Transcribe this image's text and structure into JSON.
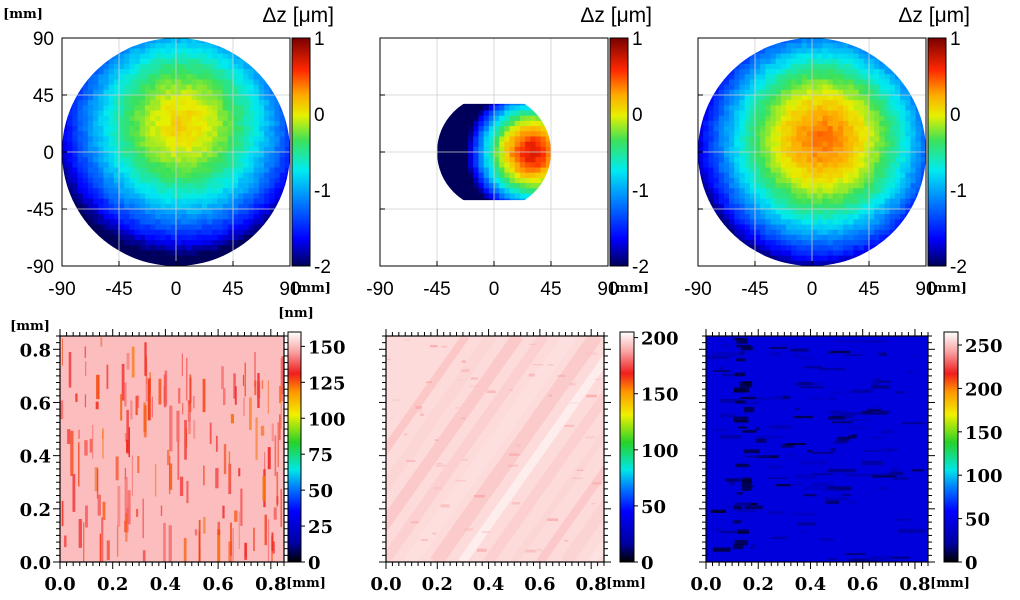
{
  "chart_data": [
    {
      "type": "heatmap",
      "panel": "top-left",
      "colorbar_title": "Δz [μm]",
      "colorbar_ticks": [
        "1",
        "0",
        "-1",
        "-2"
      ],
      "clim": [
        -2,
        1
      ],
      "x_ticks": [
        "-90",
        "-45",
        "0",
        "45",
        "90"
      ],
      "y_ticks": [
        "90",
        "45",
        "0",
        "-45",
        "-90"
      ],
      "x_unit": "[mm]",
      "y_unit": "[mm]",
      "xlim": [
        -90,
        90
      ],
      "ylim": [
        -90,
        90
      ],
      "grid": true,
      "region": "circle",
      "region_radius": 90,
      "peak": {
        "x": 5,
        "y": 22,
        "value": 0.1
      }
    },
    {
      "type": "heatmap",
      "panel": "top-middle",
      "colorbar_title": "Δz [μm]",
      "colorbar_ticks": [
        "1",
        "0",
        "-1",
        "-2"
      ],
      "clim": [
        -2,
        1
      ],
      "x_ticks": [
        "-90",
        "-45",
        "0",
        "45",
        "90"
      ],
      "x_unit": "[mm]",
      "xlim": [
        -90,
        90
      ],
      "ylim": [
        -90,
        90
      ],
      "grid": true,
      "region": "clipped-circle",
      "region_radius": 45,
      "region_y_clip": [
        -38,
        38
      ],
      "peak": {
        "x": 30,
        "y": 0,
        "value": 0.7
      }
    },
    {
      "type": "heatmap",
      "panel": "top-right",
      "colorbar_title": "Δz [μm]",
      "colorbar_ticks": [
        "1",
        "0",
        "-1",
        "-2"
      ],
      "clim": [
        -2,
        1
      ],
      "x_ticks": [
        "-90",
        "-45",
        "0",
        "45",
        "90"
      ],
      "x_unit": "[mm]",
      "xlim": [
        -90,
        90
      ],
      "ylim": [
        -90,
        90
      ],
      "grid": true,
      "region": "circle",
      "region_radius": 90,
      "peak": {
        "x": 8,
        "y": 10,
        "value": 0.4
      }
    },
    {
      "type": "heatmap",
      "panel": "bottom-left",
      "colorbar_unit": "[nm]",
      "colorbar_ticks": [
        "150",
        "125",
        "100",
        "75",
        "50",
        "25",
        "0"
      ],
      "clim": [
        0,
        160
      ],
      "x_ticks": [
        "0.0",
        "0.2",
        "0.4",
        "0.6",
        "0.8"
      ],
      "y_ticks": [
        "0.8",
        "0.6",
        "0.4",
        "0.2",
        "0.0"
      ],
      "x_unit": "[mm]",
      "y_unit": "[mm]",
      "xlim": [
        0,
        0.85
      ],
      "ylim": [
        0,
        0.85
      ],
      "base_value": 150,
      "texture": "vertical streaks"
    },
    {
      "type": "heatmap",
      "panel": "bottom-middle",
      "colorbar_ticks": [
        "200",
        "150",
        "100",
        "50",
        "0"
      ],
      "clim": [
        0,
        205
      ],
      "x_ticks": [
        "0.0",
        "0.2",
        "0.4",
        "0.6",
        "0.8"
      ],
      "x_unit": "[mm]",
      "xlim": [
        0,
        0.85
      ],
      "ylim": [
        0,
        0.85
      ],
      "base_value": 198,
      "texture": "diagonal bands"
    },
    {
      "type": "heatmap",
      "panel": "bottom-right",
      "colorbar_ticks": [
        "250",
        "200",
        "150",
        "100",
        "50",
        "0"
      ],
      "clim": [
        0,
        265
      ],
      "x_ticks": [
        "0.0",
        "0.2",
        "0.4",
        "0.6",
        "0.8"
      ],
      "x_unit": "[mm]",
      "xlim": [
        0,
        0.85
      ],
      "ylim": [
        0,
        0.85
      ],
      "base_value": 45,
      "texture": "horizontal dark streaks"
    }
  ]
}
